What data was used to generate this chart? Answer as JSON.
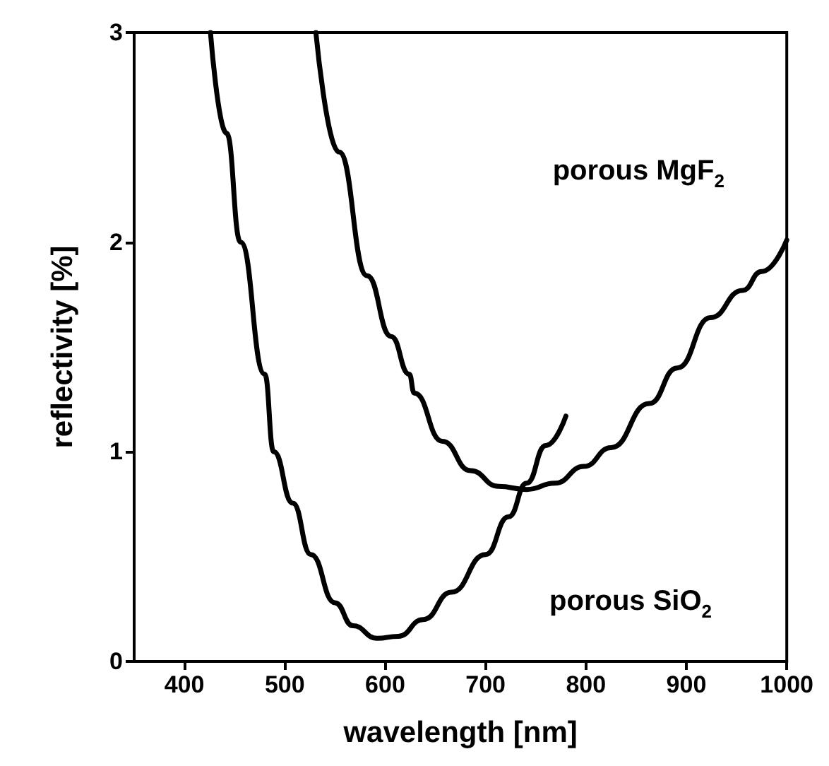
{
  "chart_data": {
    "type": "line",
    "xlabel": "wavelength [nm]",
    "ylabel": "reflectivity [%]",
    "xlim": [
      350,
      1000
    ],
    "xticks": [
      400,
      500,
      600,
      700,
      800,
      900,
      1000
    ],
    "ylim": [
      0,
      3
    ],
    "yticks": [
      0,
      1,
      2,
      3
    ],
    "grid": false,
    "legend": false,
    "marker": "none",
    "line_style": "solid",
    "series": [
      {
        "name": "porous SiO$_{2}$",
        "color": "#000000",
        "x": [
          426,
          442,
          456,
          480,
          489,
          508,
          526,
          550,
          568,
          592,
          613,
          638,
          666,
          700,
          723,
          741,
          760,
          780
        ],
        "values": [
          3,
          2.52,
          2,
          1.37,
          1,
          0.755,
          0.51,
          0.28,
          0.17,
          0.11,
          0.12,
          0.2,
          0.33,
          0.51,
          0.69,
          0.85,
          1.03,
          1.17
        ]
      },
      {
        "name": "porous MgF$_{2}$",
        "color": "#000000",
        "x": [
          531,
          554,
          582,
          606,
          624,
          629,
          657,
          685,
          713,
          741,
          769,
          798,
          825,
          863,
          891,
          924,
          956,
          975,
          1000
        ],
        "values": [
          3,
          2.43,
          1.84,
          1.55,
          1.37,
          1.28,
          1.05,
          0.91,
          0.835,
          0.82,
          0.85,
          0.93,
          1.02,
          1.23,
          1.4,
          1.64,
          1.77,
          1.86,
          2.01
        ]
      }
    ]
  }
}
